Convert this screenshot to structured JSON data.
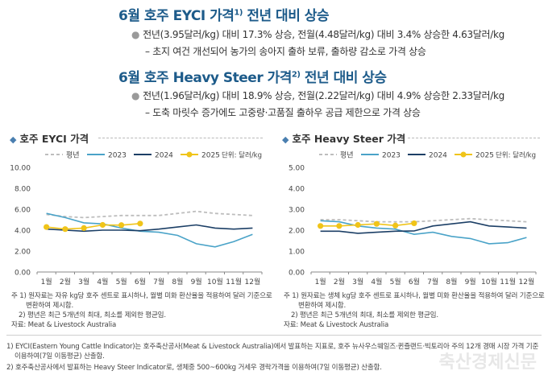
{
  "section1": {
    "title": "6월 호주 EYCI 가격",
    "title_sup": "1)",
    "title_tail": " 전년 대비 상승",
    "bullet": "전년(3.95달러/kg) 대비 17.3% 상승, 전월(4.48달러/kg) 대비 3.4% 상승한 4.63달러/kg",
    "sub": "– 초지 여건 개선되어 농가의 송아지 출하 보류, 출하량 감소로 가격 상승"
  },
  "section2": {
    "title": "6월 호주 Heavy Steer 가격",
    "title_sup": "2)",
    "title_tail": " 전년 대비 상승",
    "bullet": "전년(1.96달러/kg) 대비 18.9% 상승, 전월(2.22달러/kg) 대비 4.9% 상승한 2.33달러/kg",
    "sub": "– 도축 마릿수 증가에도 고중량·고품질 출하우 공급 제한으로 가격 상승"
  },
  "bullet_icon": "circle-bullet-icon",
  "title_icon": "diamond-icon",
  "colors": {
    "avg": "#bdbdbd",
    "y2023": "#4aa3c8",
    "y2024": "#1c3f66",
    "y2025": "#f0c419",
    "heading": "#1d5b8a"
  },
  "chart_data": [
    {
      "type": "line",
      "title": "호주 EYCI 가격",
      "unit": "단위: 달러/kg",
      "categories": [
        "1월",
        "2월",
        "3월",
        "4월",
        "5월",
        "6월",
        "7월",
        "8월",
        "9월",
        "10월",
        "11월",
        "12월"
      ],
      "yticks": [
        "10.00",
        "8.00",
        "6.00",
        "4.00",
        "2.00",
        "0.00"
      ],
      "ylim": [
        0,
        10
      ],
      "grid": false,
      "legend_position": "top",
      "series": [
        {
          "name": "평년",
          "style": "dashed",
          "color": "#bdbdbd",
          "values": [
            5.5,
            5.3,
            5.2,
            5.3,
            5.4,
            5.4,
            5.4,
            5.6,
            5.8,
            5.6,
            5.5,
            5.4
          ]
        },
        {
          "name": "2023",
          "style": "solid",
          "color": "#4aa3c8",
          "values": [
            5.6,
            5.2,
            4.7,
            4.6,
            4.2,
            3.9,
            3.8,
            3.5,
            2.7,
            2.4,
            2.9,
            3.6
          ]
        },
        {
          "name": "2024",
          "style": "solid",
          "color": "#1c3f66",
          "values": [
            4.1,
            4.0,
            3.9,
            4.0,
            4.0,
            3.95,
            4.1,
            4.3,
            4.5,
            4.2,
            4.1,
            4.2
          ]
        },
        {
          "name": "2025",
          "style": "marker",
          "color": "#f0c419",
          "values": [
            4.3,
            4.1,
            4.2,
            4.5,
            4.48,
            4.63,
            null,
            null,
            null,
            null,
            null,
            null
          ]
        }
      ]
    },
    {
      "type": "line",
      "title": "호주 Heavy Steer 가격",
      "unit": "단위: 달러/kg",
      "categories": [
        "1월",
        "2월",
        "3월",
        "4월",
        "5월",
        "6월",
        "7월",
        "8월",
        "9월",
        "10월",
        "11월",
        "12월"
      ],
      "yticks": [
        "5.00",
        "4.00",
        "3.00",
        "2.00",
        "1.00",
        "0.00"
      ],
      "ylim": [
        0,
        5
      ],
      "grid": false,
      "legend_position": "top",
      "series": [
        {
          "name": "평년",
          "style": "dashed",
          "color": "#bdbdbd",
          "values": [
            2.5,
            2.5,
            2.45,
            2.4,
            2.4,
            2.4,
            2.45,
            2.5,
            2.55,
            2.5,
            2.45,
            2.4
          ]
        },
        {
          "name": "2023",
          "style": "solid",
          "color": "#4aa3c8",
          "values": [
            2.45,
            2.4,
            2.2,
            2.1,
            2.05,
            1.8,
            1.9,
            1.7,
            1.6,
            1.35,
            1.4,
            1.65
          ]
        },
        {
          "name": "2024",
          "style": "solid",
          "color": "#1c3f66",
          "values": [
            1.95,
            1.95,
            1.85,
            1.9,
            1.95,
            1.96,
            2.2,
            2.3,
            2.4,
            2.2,
            2.15,
            2.1
          ]
        },
        {
          "name": "2025",
          "style": "marker",
          "color": "#f0c419",
          "values": [
            2.2,
            2.2,
            2.25,
            2.3,
            2.22,
            2.33,
            null,
            null,
            null,
            null,
            null,
            null
          ]
        }
      ]
    }
  ],
  "notes_left": {
    "n1a": "주 1) 원자료는 자유 kg당 호주 센트로 표시하나, 월별 미화 환산율을 적용하여 달러 기준으로",
    "n1b": "변환하여 제시함.",
    "n2": "2) 평년은 최근 5개년의 최대, 최소를 제외한 평균임.",
    "src": "자료: Meat & Livestock Australia"
  },
  "notes_right": {
    "n1a": "주 1) 원자료는 생체 kg당 호주 센트로 표시하나, 월별 미화 환산율을 적용하여 달러 기준으로",
    "n1b": "변환하여 제시함.",
    "n2": "2) 평년은 최근 5개년의 최대, 최소를 제외한 평균임.",
    "src": "자료: Meat & Livestock Australia"
  },
  "footnotes": {
    "f1a": "1) EYCI(Eastern Young Cattle Indicator)는 호주축산공사(Meat & Livestock Australia)에서 발표하는 지표로, 호주 뉴사우스웨일즈·퀸즐랜드·빅토리아 주의 12개 경매 시장 가격 기준",
    "f1b": "이용하여(7일 이동평균) 산출함.",
    "f2": "2) 호주축산공사에서 발표하는 Heavy Steer Indicator로, 생체중 500~600kg 거세우 경락가격을 이용하여(7일 이동평균) 산출함."
  },
  "watermark": "축산경제신문"
}
